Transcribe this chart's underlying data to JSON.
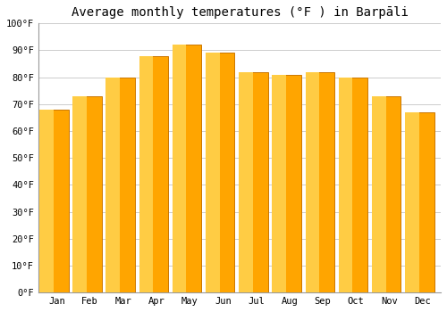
{
  "title": "Average monthly temperatures (°F ) in Barpāli",
  "months": [
    "Jan",
    "Feb",
    "Mar",
    "Apr",
    "May",
    "Jun",
    "Jul",
    "Aug",
    "Sep",
    "Oct",
    "Nov",
    "Dec"
  ],
  "values": [
    68,
    73,
    80,
    88,
    92,
    89,
    82,
    81,
    82,
    80,
    73,
    67
  ],
  "bar_color_main": "#FFA500",
  "bar_color_light": "#FFCC44",
  "bar_color_edge": "#CC7700",
  "ylim": [
    0,
    100
  ],
  "yticks": [
    0,
    10,
    20,
    30,
    40,
    50,
    60,
    70,
    80,
    90,
    100
  ],
  "ytick_labels": [
    "0°F",
    "10°F",
    "20°F",
    "30°F",
    "40°F",
    "50°F",
    "60°F",
    "70°F",
    "80°F",
    "90°F",
    "100°F"
  ],
  "bg_color": "#FFFFFF",
  "grid_color": "#CCCCCC",
  "title_fontsize": 10,
  "tick_fontsize": 7.5
}
